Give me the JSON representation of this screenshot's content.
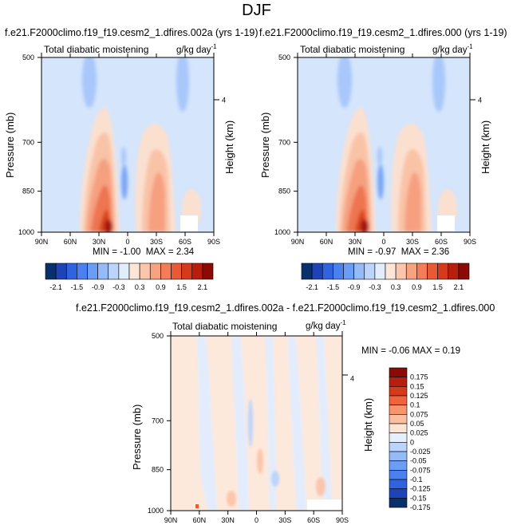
{
  "page": {
    "title": "DJF"
  },
  "chart_data": [
    {
      "type": "heatmap",
      "title": "f.e21.F2000climo.f19_f19.cesm2_1.dfires.002a (yrs 1-19)",
      "left_label": "Total diabatic moistening",
      "units_main": "g/kg day",
      "units_sup": "-1",
      "ylabel": "Pressure (mb)",
      "ylabel_right": "Height (km)",
      "x_ticks": [
        "90N",
        "60N",
        "30N",
        "0",
        "30S",
        "60S",
        "90S"
      ],
      "y_ticks": [
        "500",
        "700",
        "850",
        "1000"
      ],
      "y_right_ticks": [
        "4"
      ],
      "xlim": [
        90,
        -90
      ],
      "ylim": [
        1000,
        500
      ],
      "min_label": "MIN = -1.00",
      "max_label": "MAX = 2.34",
      "colorbar_labels": [
        "-2.1",
        "-1.5",
        "-0.9",
        "-0.3",
        "0.3",
        "0.9",
        "1.5",
        "2.1"
      ]
    },
    {
      "type": "heatmap",
      "title": "f.e21.F2000climo.f19_f19.cesm2_1.dfires.000 (yrs 1-19)",
      "left_label": "Total diabatic moistening",
      "units_main": "g/kg day",
      "units_sup": "-1",
      "ylabel": "Pressure (mb)",
      "ylabel_right": "Height (km)",
      "x_ticks": [
        "90N",
        "60N",
        "30N",
        "0",
        "30S",
        "60S",
        "90S"
      ],
      "y_ticks": [
        "500",
        "700",
        "850",
        "1000"
      ],
      "y_right_ticks": [
        "4"
      ],
      "xlim": [
        90,
        -90
      ],
      "ylim": [
        1000,
        500
      ],
      "min_label": "MIN = -0.97",
      "max_label": "MAX = 2.36",
      "colorbar_labels": [
        "-2.1",
        "-1.5",
        "-0.9",
        "-0.3",
        "0.3",
        "0.9",
        "1.5",
        "2.1"
      ]
    },
    {
      "type": "heatmap",
      "title": "f.e21.F2000climo.f19_f19.cesm2_1.dfires.002a - f.e21.F2000climo.f19_f19.cesm2_1.dfires.000",
      "left_label": "Total diabatic moistening",
      "units_main": "g/kg day",
      "units_sup": "-1",
      "ylabel": "Pressure (mb)",
      "ylabel_right": "Height (km)",
      "x_ticks": [
        "90N",
        "60N",
        "30N",
        "0",
        "30S",
        "60S",
        "90S"
      ],
      "y_ticks": [
        "500",
        "700",
        "850",
        "1000"
      ],
      "y_right_ticks": [
        "4"
      ],
      "xlim": [
        90,
        -90
      ],
      "ylim": [
        1000,
        500
      ],
      "minmax_label": "MIN = -0.06  MAX =  0.19",
      "colorbar_labels": [
        "0.175",
        "0.15",
        "0.125",
        "0.1",
        "0.075",
        "0.05",
        "0.025",
        "0",
        "-0.025",
        "-0.05",
        "-0.075",
        "-0.1",
        "-0.125",
        "-0.15",
        "-0.175"
      ]
    }
  ],
  "palette": {
    "abs": [
      "#08306b",
      "#1c44b8",
      "#2f63e0",
      "#4a80f0",
      "#6c9df5",
      "#94baf8",
      "#bcd4fb",
      "#e1ecfd",
      "#fde5d8",
      "#fbc6ab",
      "#f8a27f",
      "#f37d58",
      "#e85a36",
      "#d63a1c",
      "#b81e0c",
      "#8b0a04"
    ],
    "diff": [
      "#8b0a04",
      "#b81e0c",
      "#d63a1c",
      "#f0633c",
      "#f8956c",
      "#fbbfa0",
      "#fde3d2",
      "#e6effd",
      "#bcd4fb",
      "#94baf8",
      "#6c9df5",
      "#4a80f0",
      "#2f63e0",
      "#1c44b8",
      "#08306b"
    ]
  }
}
